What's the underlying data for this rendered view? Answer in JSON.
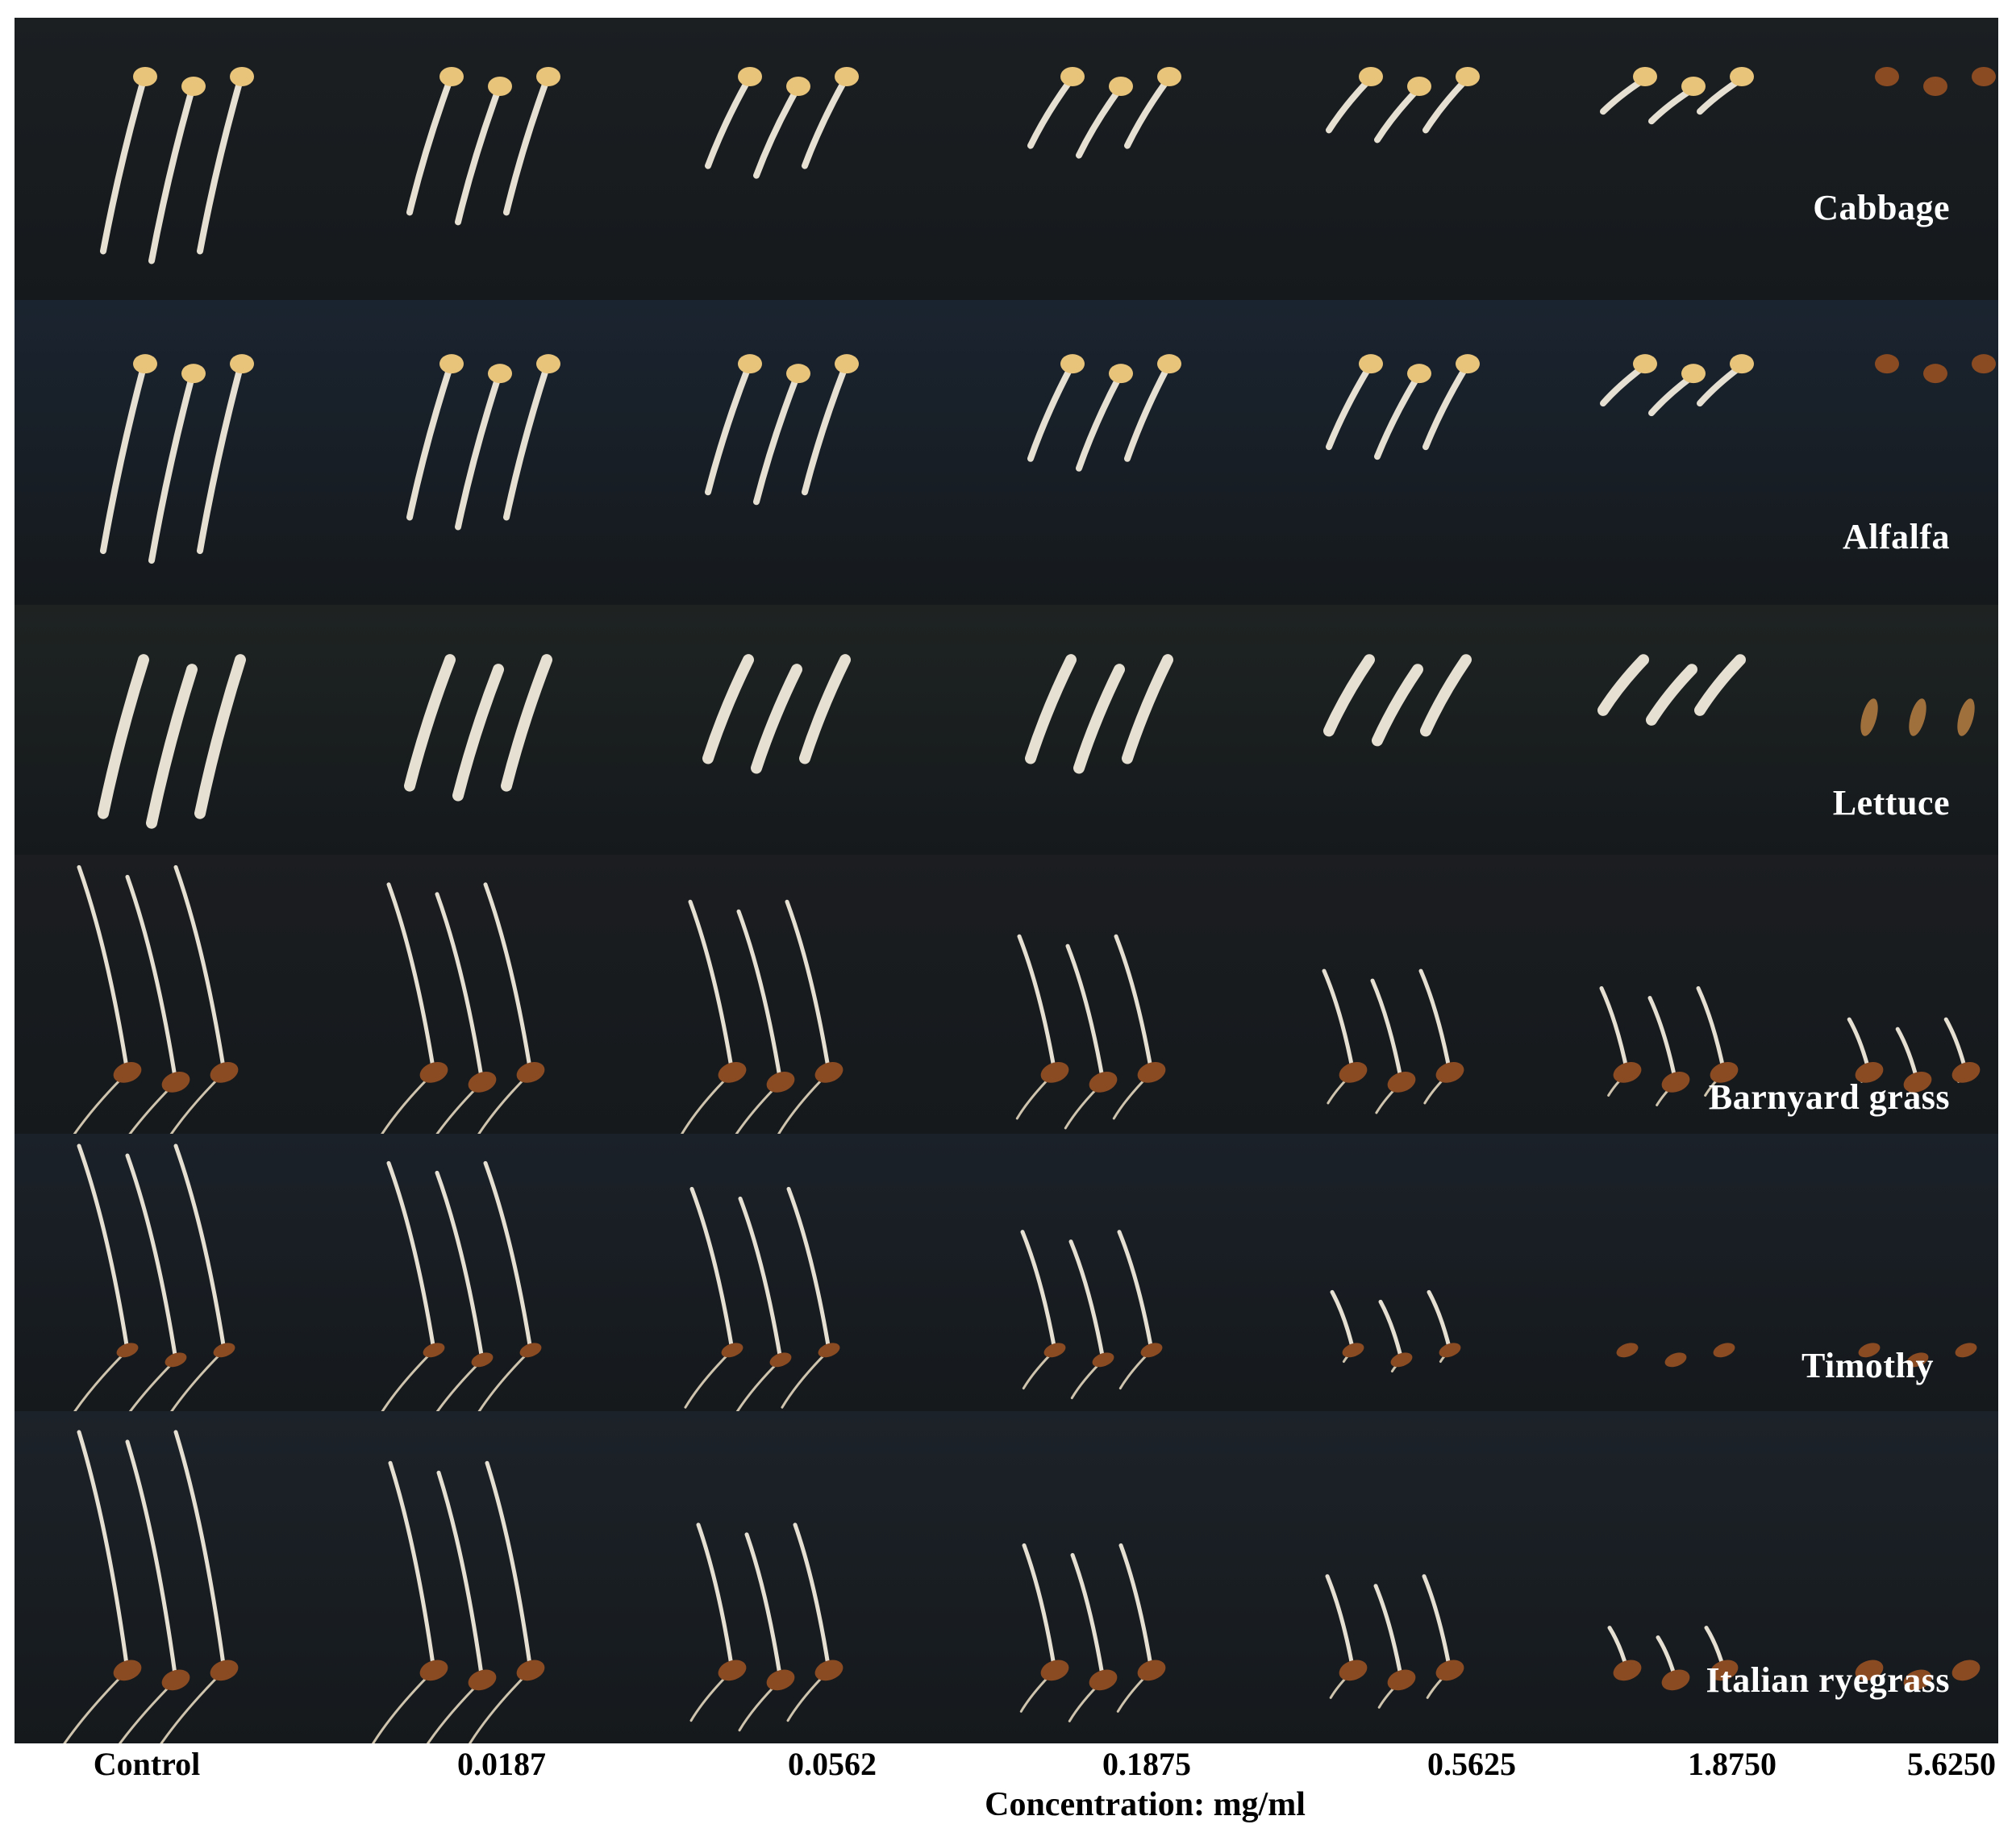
{
  "colors": {
    "page_background": "#ffffff",
    "cloth_dark": "#1b1f22",
    "cloth_blue": "#1a2430",
    "seed_yellow": "#e8c37a",
    "seed_brown": "#8a4a22",
    "sprout_white": "#e6e0d3",
    "label_text": "#ffffff",
    "axis_text": "#000000"
  },
  "photo": {
    "rows": [
      {
        "id": "cabbage",
        "label": "Cabbage",
        "seed_style": "round-yellow",
        "shoot_style": "curled",
        "bg": "#1b1f22"
      },
      {
        "id": "alfalfa",
        "label": "Alfalfa",
        "seed_style": "round-yellow",
        "shoot_style": "curled",
        "bg": "#1a2430"
      },
      {
        "id": "lettuce",
        "label": "Lettuce",
        "seed_style": "none",
        "shoot_style": "thick-curl",
        "bg": "#1e2322"
      },
      {
        "id": "barnyard-grass",
        "label": "Barnyard grass",
        "seed_style": "brown",
        "shoot_style": "grass",
        "bg": "#1b1d20"
      },
      {
        "id": "timothy",
        "label": "Timothy",
        "seed_style": "small-brown",
        "shoot_style": "grass",
        "bg": "#1b2129"
      },
      {
        "id": "italian-ryegrass",
        "label": "Italian ryegrass",
        "seed_style": "brown",
        "shoot_style": "grass",
        "bg": "#1c2229"
      }
    ],
    "relative_growth": {
      "cabbage": [
        1.0,
        0.75,
        0.45,
        0.32,
        0.22,
        0.1,
        0.0
      ],
      "alfalfa": [
        1.0,
        0.8,
        0.65,
        0.45,
        0.38,
        0.12,
        0.0
      ],
      "lettuce": [
        1.0,
        0.8,
        0.6,
        0.6,
        0.4,
        0.25,
        0.0
      ],
      "barnyard-grass": [
        1.0,
        0.9,
        0.8,
        0.6,
        0.4,
        0.3,
        0.12
      ],
      "timothy": [
        1.0,
        0.9,
        0.75,
        0.5,
        0.15,
        0.0,
        0.0
      ],
      "italian-ryegrass": [
        1.0,
        0.85,
        0.55,
        0.45,
        0.3,
        0.05,
        0.0
      ]
    }
  },
  "x_axis": {
    "ticks": [
      "Control",
      "0.0187",
      "0.0562",
      "0.1875",
      "0.5625",
      "1.8750",
      "5.6250"
    ],
    "title": "Concentration: mg/ml"
  }
}
